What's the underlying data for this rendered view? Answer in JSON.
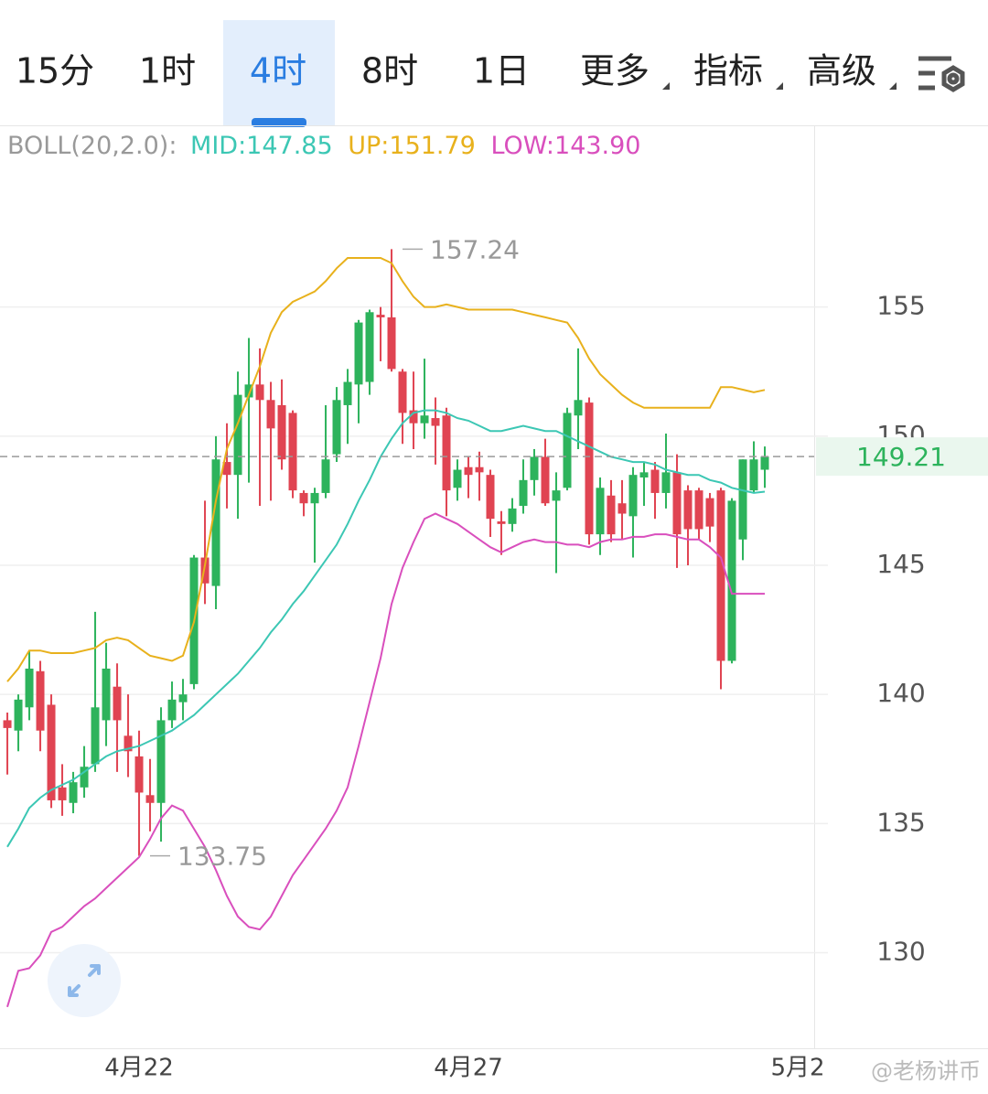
{
  "tabs": [
    "15分",
    "1时",
    "4时",
    "8时",
    "1日",
    "更多",
    "指标",
    "高级"
  ],
  "active_tab": "4时",
  "indicator_legend": [
    "BOLL(20,2.0):",
    "MID:147.85",
    "UP:151.79",
    "LOW:143.90"
  ],
  "watermark": "@老杨讲币",
  "chart_data": {
    "type": "candlestick",
    "up_color": "#2db35c",
    "down_color": "#e04452",
    "xlim": [
      -0.67,
      73.5
    ],
    "xticks": [
      {
        "value": 12,
        "label": "4月22"
      },
      {
        "value": 42,
        "label": "4月27"
      },
      {
        "value": 72,
        "label": "5月2"
      }
    ],
    "ylim": [
      126.3,
      162.0
    ],
    "yticks": [
      130,
      135,
      140,
      145,
      150,
      155
    ],
    "grid": true,
    "max_marker": 157.24,
    "min_marker": 133.75,
    "last_price": 149.21,
    "open": [
      139.0,
      138.6,
      139.5,
      140.9,
      139.6,
      136.4,
      135.8,
      136.4,
      137.3,
      139.0,
      140.3,
      138.4,
      137.6,
      136.1,
      135.8,
      139.0,
      139.7,
      140.4,
      145.3,
      144.2,
      149.0,
      148.5,
      151.5,
      152.0,
      151.4,
      151.2,
      150.9,
      147.8,
      147.4,
      147.8,
      149.3,
      151.2,
      152.0,
      152.1,
      154.7,
      154.6,
      152.5,
      151.0,
      150.5,
      150.7,
      150.8,
      148.0,
      148.8,
      148.8,
      148.5,
      146.7,
      146.6,
      147.3,
      148.3,
      149.2,
      147.5,
      148.0,
      150.8,
      151.3,
      146.2,
      147.7,
      147.4,
      146.9,
      148.4,
      148.7,
      147.8,
      148.6,
      147.9,
      147.9,
      147.6,
      147.9,
      141.3,
      146.0,
      147.9,
      148.7
    ],
    "high": [
      139.3,
      140.0,
      141.7,
      141.3,
      140.0,
      137.3,
      137.0,
      138.0,
      143.2,
      142.0,
      141.2,
      140.0,
      138.6,
      137.5,
      139.5,
      140.5,
      140.6,
      145.4,
      147.5,
      150.0,
      150.5,
      152.5,
      153.8,
      153.4,
      152.1,
      152.2,
      151.0,
      147.9,
      148.0,
      151.2,
      151.9,
      152.6,
      154.5,
      154.9,
      155.0,
      157.24,
      152.6,
      152.5,
      153.0,
      151.5,
      151.1,
      149.1,
      149.2,
      149.4,
      148.7,
      147.1,
      147.6,
      149.1,
      149.5,
      149.9,
      148.6,
      151.1,
      153.4,
      151.5,
      148.4,
      148.3,
      148.3,
      148.8,
      149.0,
      149.0,
      150.1,
      149.3,
      148.1,
      148.0,
      147.8,
      148.0,
      147.6,
      149.1,
      149.8,
      149.6
    ],
    "low": [
      136.9,
      137.8,
      139.0,
      137.8,
      135.6,
      135.3,
      135.4,
      136.0,
      137.0,
      138.0,
      137.0,
      136.8,
      133.75,
      134.7,
      134.3,
      138.7,
      139.0,
      140.2,
      143.5,
      143.3,
      147.2,
      146.8,
      148.2,
      147.3,
      147.5,
      148.7,
      147.6,
      146.9,
      145.1,
      147.6,
      149.0,
      149.7,
      150.5,
      151.6,
      152.9,
      152.5,
      149.7,
      149.5,
      149.9,
      148.9,
      146.9,
      147.5,
      147.6,
      147.5,
      146.1,
      145.4,
      146.3,
      147.0,
      147.7,
      147.3,
      144.7,
      147.9,
      149.5,
      145.8,
      145.4,
      145.9,
      146.0,
      145.3,
      147.3,
      146.8,
      147.2,
      144.9,
      145.0,
      146.0,
      145.9,
      140.2,
      141.2,
      145.2,
      147.8,
      148.0
    ],
    "close": [
      138.7,
      139.8,
      141.0,
      138.6,
      135.9,
      135.9,
      136.6,
      137.2,
      139.5,
      141.0,
      139.0,
      137.8,
      136.2,
      135.8,
      139.0,
      139.8,
      140.0,
      145.3,
      144.3,
      149.1,
      148.5,
      151.6,
      152.0,
      151.4,
      150.3,
      149.1,
      147.9,
      147.4,
      147.8,
      149.1,
      151.4,
      152.1,
      154.4,
      154.8,
      154.6,
      152.6,
      150.9,
      150.5,
      150.8,
      150.4,
      147.9,
      148.7,
      148.5,
      148.6,
      146.8,
      146.6,
      147.2,
      148.3,
      149.2,
      147.4,
      147.9,
      150.9,
      151.4,
      146.2,
      148.0,
      146.2,
      147.0,
      148.5,
      148.6,
      147.8,
      148.6,
      146.2,
      146.4,
      146.4,
      146.5,
      141.3,
      147.5,
      149.1,
      149.1,
      149.21
    ],
    "lines": [
      {
        "name": "UP",
        "color": "#e8b11c",
        "values": [
          140.5,
          141.0,
          141.7,
          141.7,
          141.6,
          141.6,
          141.6,
          141.7,
          141.8,
          142.1,
          142.2,
          142.1,
          141.8,
          141.5,
          141.4,
          141.3,
          141.5,
          142.8,
          145.0,
          147.5,
          149.5,
          150.5,
          151.6,
          152.7,
          154.0,
          154.8,
          155.2,
          155.4,
          155.6,
          156.0,
          156.5,
          156.9,
          156.9,
          156.9,
          156.9,
          156.7,
          156.0,
          155.4,
          155.0,
          155.0,
          155.1,
          155.0,
          154.9,
          154.9,
          154.9,
          154.9,
          154.9,
          154.8,
          154.7,
          154.6,
          154.5,
          154.4,
          153.8,
          153.0,
          152.4,
          152.0,
          151.6,
          151.3,
          151.1,
          151.1,
          151.1,
          151.1,
          151.1,
          151.1,
          151.1,
          151.9,
          151.9,
          151.8,
          151.7,
          151.79
        ]
      },
      {
        "name": "MID",
        "color": "#3cc7b4",
        "values": [
          134.1,
          134.8,
          135.6,
          136.0,
          136.3,
          136.5,
          136.7,
          137.0,
          137.3,
          137.6,
          137.8,
          137.9,
          138.0,
          138.2,
          138.4,
          138.6,
          138.9,
          139.2,
          139.6,
          140.0,
          140.4,
          140.8,
          141.3,
          141.8,
          142.4,
          142.9,
          143.5,
          144.0,
          144.6,
          145.2,
          145.8,
          146.6,
          147.5,
          148.3,
          149.2,
          149.9,
          150.5,
          150.9,
          151.0,
          151.0,
          150.9,
          150.7,
          150.6,
          150.4,
          150.2,
          150.2,
          150.3,
          150.4,
          150.3,
          150.2,
          150.2,
          150.0,
          149.8,
          149.6,
          149.4,
          149.2,
          149.1,
          149.0,
          149.0,
          148.9,
          148.7,
          148.6,
          148.5,
          148.5,
          148.3,
          148.2,
          148.0,
          147.9,
          147.8,
          147.85
        ]
      },
      {
        "name": "LOW",
        "color": "#d94fbd",
        "values": [
          127.9,
          129.3,
          129.4,
          129.9,
          130.8,
          131.0,
          131.4,
          131.8,
          132.1,
          132.5,
          132.9,
          133.3,
          133.7,
          134.4,
          135.2,
          135.7,
          135.5,
          134.8,
          134.1,
          133.2,
          132.2,
          131.4,
          131.0,
          130.9,
          131.4,
          132.2,
          133.0,
          133.6,
          134.2,
          134.8,
          135.5,
          136.4,
          138.0,
          139.7,
          141.4,
          143.5,
          144.9,
          145.9,
          146.8,
          147.0,
          146.8,
          146.6,
          146.3,
          146.0,
          145.7,
          145.5,
          145.7,
          145.9,
          146.0,
          145.9,
          145.9,
          145.8,
          145.8,
          145.7,
          145.9,
          146.0,
          146.0,
          146.1,
          146.1,
          146.2,
          146.2,
          146.1,
          146.0,
          146.0,
          145.7,
          145.3,
          143.9,
          143.9,
          143.9,
          143.9
        ]
      }
    ]
  }
}
